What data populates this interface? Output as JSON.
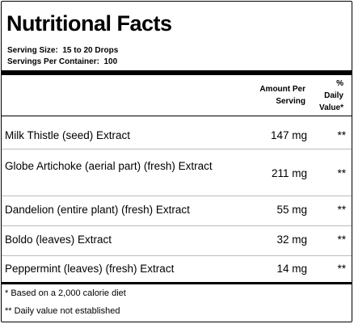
{
  "title": "Nutritional Facts",
  "serving": {
    "size_label": "Serving Size:",
    "size_value": "15 to 20 Drops",
    "per_container_label": "Servings Per Container:",
    "per_container_value": "100"
  },
  "columns": {
    "amount_line1": "Amount Per",
    "amount_line2": "Serving",
    "dv_line1": "%",
    "dv_line2": "Daily",
    "dv_line3": "Value*"
  },
  "rows": [
    {
      "name": "Milk Thistle (seed) Extract",
      "amount": "147 mg",
      "dv": "**"
    },
    {
      "name": "Globe Artichoke (aerial part) (fresh) Extract",
      "amount": "211 mg",
      "dv": "**"
    },
    {
      "name": "Dandelion (entire plant) (fresh) Extract",
      "amount": "55 mg",
      "dv": "**"
    },
    {
      "name": "Boldo (leaves) Extract",
      "amount": "32 mg",
      "dv": "**"
    },
    {
      "name": "Peppermint (leaves) (fresh) Extract",
      "amount": "14 mg",
      "dv": "**"
    }
  ],
  "footnotes": [
    "* Based on a 2,000 calorie diet",
    "** Daily value not established"
  ]
}
